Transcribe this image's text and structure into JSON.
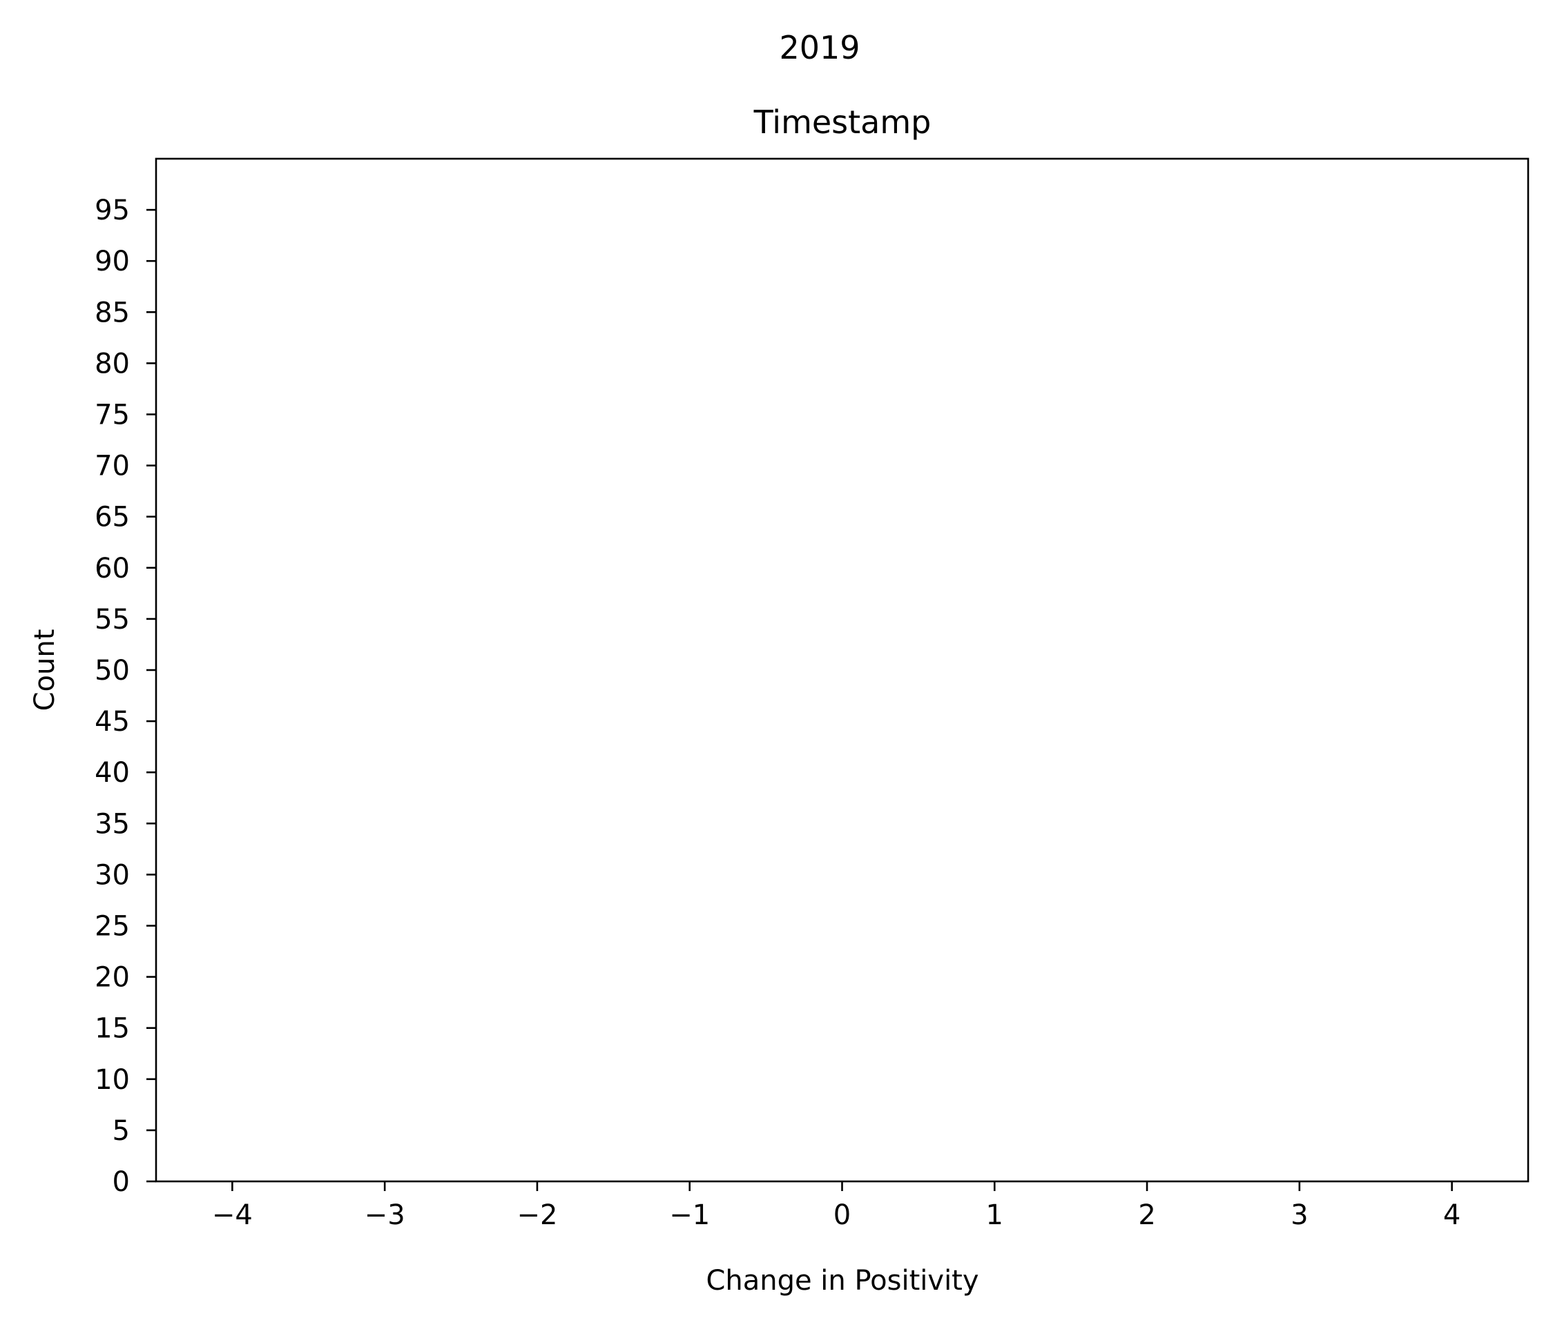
{
  "chart_data": {
    "type": "bar",
    "suptitle": "2019",
    "title": "Timestamp",
    "xlabel": "Change in Positivity",
    "ylabel": "Count",
    "xlim": [
      -4.5,
      4.5
    ],
    "ylim": [
      0,
      100
    ],
    "xticks": [
      -4,
      -3,
      -2,
      -1,
      0,
      1,
      2,
      3,
      4
    ],
    "xtick_labels": [
      "−4",
      "−3",
      "−2",
      "−1",
      "0",
      "1",
      "2",
      "3",
      "4"
    ],
    "yticks": [
      0,
      5,
      10,
      15,
      20,
      25,
      30,
      35,
      40,
      45,
      50,
      55,
      60,
      65,
      70,
      75,
      80,
      85,
      90,
      95
    ],
    "ytick_labels": [
      "0",
      "5",
      "10",
      "15",
      "20",
      "25",
      "30",
      "35",
      "40",
      "45",
      "50",
      "55",
      "60",
      "65",
      "70",
      "75",
      "80",
      "85",
      "90",
      "95"
    ],
    "series": [],
    "grid": false,
    "legend": false
  }
}
